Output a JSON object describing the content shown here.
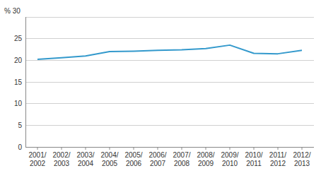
{
  "chart_data": {
    "type": "line",
    "categories": [
      "2001/\n2002",
      "2002/\n2003",
      "2003/\n2004",
      "2004/\n2005",
      "2005/\n2006",
      "2006/\n2007",
      "2007/\n2008",
      "2008/\n2009",
      "2009/\n2010",
      "2010/\n2011",
      "2011/\n2012",
      "2012/\n2013"
    ],
    "values": [
      20.2,
      20.6,
      21.0,
      22.0,
      22.1,
      22.3,
      22.4,
      22.7,
      23.5,
      21.6,
      21.5,
      22.3
    ],
    "color": "#3399CC",
    "ylim": [
      0,
      30
    ],
    "yticks": [
      0,
      5,
      10,
      15,
      20,
      25,
      {
        "value": 30,
        "label": "% 30"
      }
    ],
    "grid": true
  }
}
